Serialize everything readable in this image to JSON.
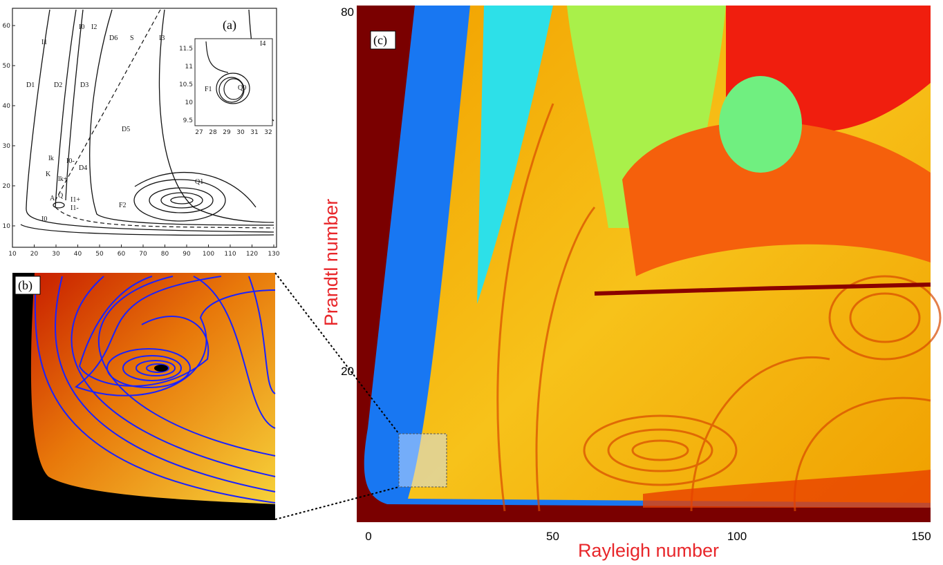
{
  "panel_a": {
    "label": "(a)",
    "x_ticks": [
      10,
      20,
      30,
      40,
      50,
      60,
      70,
      80,
      90,
      100,
      110,
      120,
      130
    ],
    "y_ticks": [
      10,
      20,
      30,
      40,
      50,
      60
    ],
    "region_labels": [
      "I1",
      "I0",
      "I2",
      "D6",
      "S",
      "I3",
      "I4",
      "D1",
      "D2",
      "D3",
      "D5",
      "lk",
      "I0-",
      "K",
      "lk+",
      "D4",
      "A",
      "Q",
      "I1+",
      "I1-",
      "I0",
      "F2",
      "Q1"
    ],
    "inset": {
      "x_ticks": [
        27,
        28,
        29,
        30,
        31,
        32
      ],
      "y_ticks": [
        9.5,
        10,
        10.5,
        11,
        11.5
      ],
      "labels": [
        "F1",
        "Q0"
      ]
    }
  },
  "panel_b": {
    "label": "(b)"
  },
  "panel_c": {
    "label": "(c)",
    "x_label": "Rayleigh number",
    "y_label": "Prandtl number",
    "x_ticks": [
      0,
      50,
      100,
      150
    ],
    "y_ticks": [
      20,
      80
    ]
  }
}
